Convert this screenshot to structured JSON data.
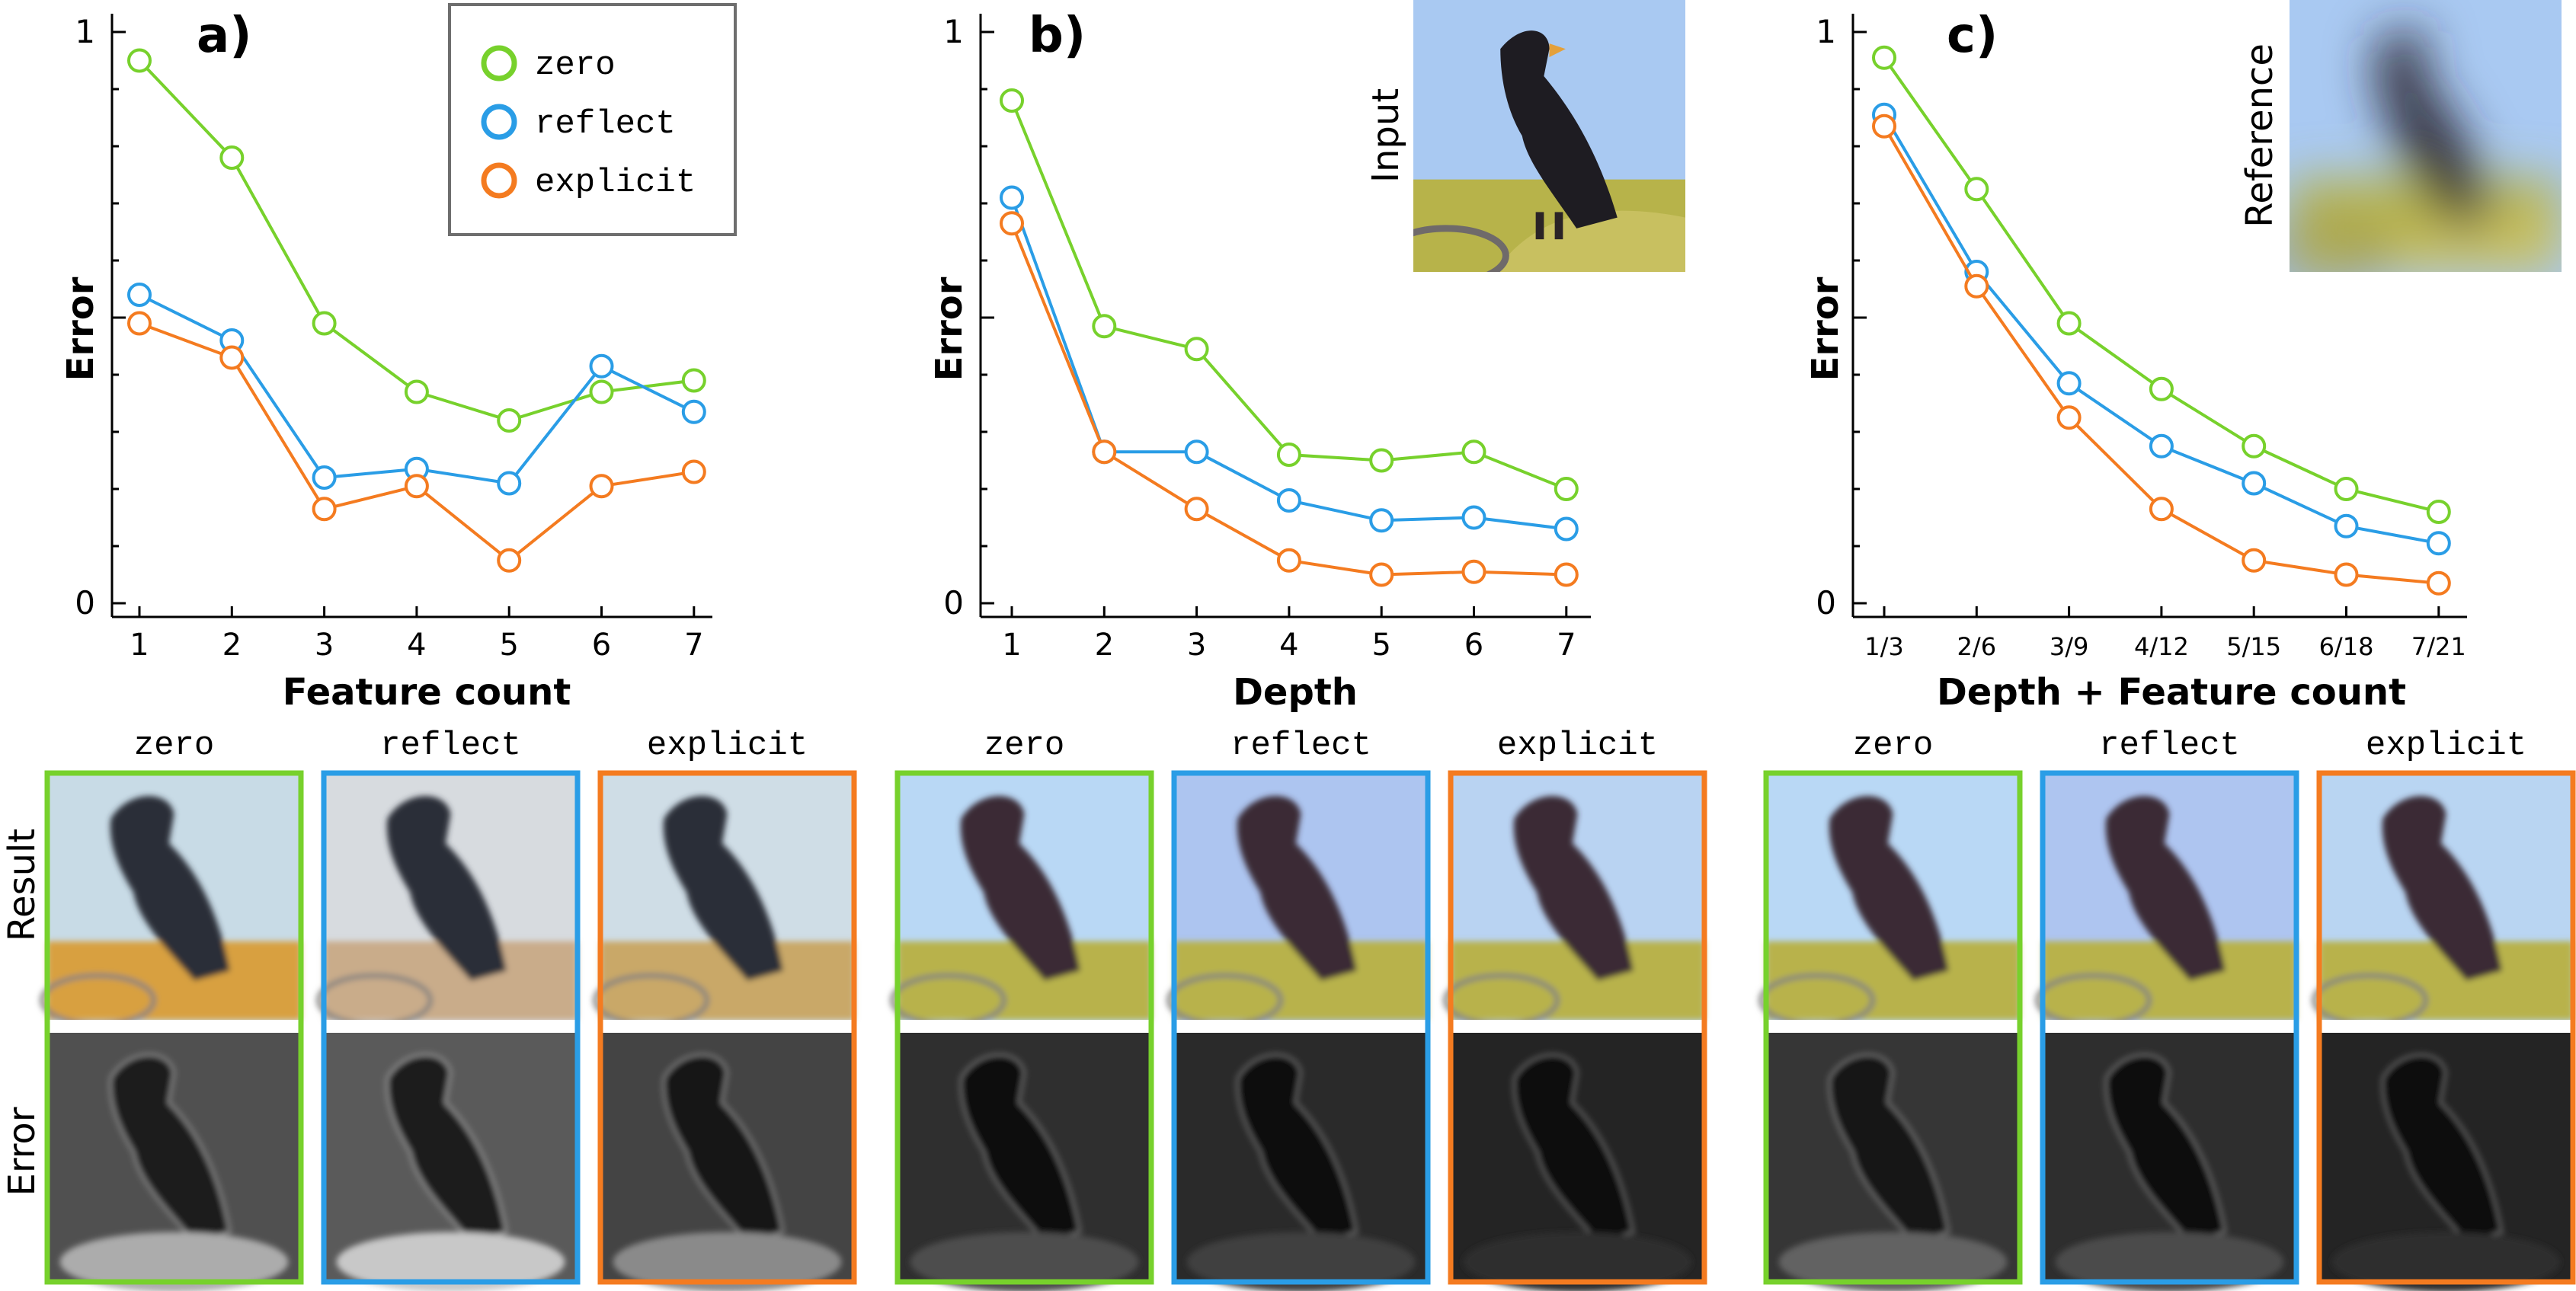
{
  "colors": {
    "zero": "#77d12c",
    "reflect": "#2a9de6",
    "explicit": "#f47b20",
    "axis": "#000000"
  },
  "legend": {
    "placement": "top-right of panel a",
    "entries": [
      "zero",
      "reflect",
      "explicit"
    ]
  },
  "chart_data": [
    {
      "type": "line",
      "panel": "a)",
      "xlabel": "Feature count",
      "ylabel": "Error",
      "categories": [
        "1",
        "2",
        "3",
        "4",
        "5",
        "6",
        "7"
      ],
      "ylim": [
        0,
        1
      ],
      "yticks": [
        "0",
        "1"
      ],
      "series": [
        {
          "name": "zero",
          "values": [
            0.95,
            0.78,
            0.49,
            0.37,
            0.32,
            0.37,
            0.39
          ]
        },
        {
          "name": "reflect",
          "values": [
            0.54,
            0.46,
            0.22,
            0.235,
            0.21,
            0.415,
            0.335
          ]
        },
        {
          "name": "explicit",
          "values": [
            0.49,
            0.43,
            0.165,
            0.205,
            0.075,
            0.205,
            0.23
          ]
        }
      ],
      "grid": false
    },
    {
      "type": "line",
      "panel": "b)",
      "xlabel": "Depth",
      "ylabel": "Error",
      "categories": [
        "1",
        "2",
        "3",
        "4",
        "5",
        "6",
        "7"
      ],
      "ylim": [
        0,
        1
      ],
      "yticks": [
        "0",
        "1"
      ],
      "series": [
        {
          "name": "zero",
          "values": [
            0.88,
            0.485,
            0.445,
            0.26,
            0.25,
            0.265,
            0.2
          ]
        },
        {
          "name": "reflect",
          "values": [
            0.71,
            0.265,
            0.265,
            0.18,
            0.145,
            0.15,
            0.13
          ]
        },
        {
          "name": "explicit",
          "values": [
            0.665,
            0.265,
            0.165,
            0.075,
            0.05,
            0.055,
            0.05
          ]
        }
      ],
      "inset_label": "Input",
      "grid": false
    },
    {
      "type": "line",
      "panel": "c)",
      "xlabel": "Depth + Feature count",
      "ylabel": "Error",
      "categories": [
        "1/3",
        "2/6",
        "3/9",
        "4/12",
        "5/15",
        "6/18",
        "7/21"
      ],
      "ylim": [
        0,
        1
      ],
      "yticks": [
        "0",
        "1"
      ],
      "series": [
        {
          "name": "zero",
          "values": [
            0.955,
            0.725,
            0.49,
            0.375,
            0.275,
            0.2,
            0.16
          ]
        },
        {
          "name": "reflect",
          "values": [
            0.855,
            0.58,
            0.385,
            0.275,
            0.21,
            0.135,
            0.105
          ]
        },
        {
          "name": "explicit",
          "values": [
            0.835,
            0.555,
            0.325,
            0.165,
            0.075,
            0.05,
            0.035
          ]
        }
      ],
      "inset_label": "Reference",
      "grid": false
    }
  ],
  "thumbnails": {
    "row_labels": [
      "Result",
      "Error"
    ],
    "column_labels": [
      "zero",
      "reflect",
      "explicit"
    ],
    "groups": [
      "a",
      "b",
      "c"
    ],
    "error_brightness": [
      [
        0.42,
        0.5,
        0.32
      ],
      [
        0.14,
        0.1,
        0.05
      ],
      [
        0.2,
        0.13,
        0.05
      ]
    ],
    "result_tints": [
      [
        "#c8dbe6",
        "#d7dbdf",
        "#cfdde6"
      ],
      [
        "#b9d8f5",
        "#adc5f0",
        "#b9d3f2"
      ],
      [
        "#b9d8f5",
        "#aec5f0",
        "#b9d5f2"
      ]
    ]
  }
}
